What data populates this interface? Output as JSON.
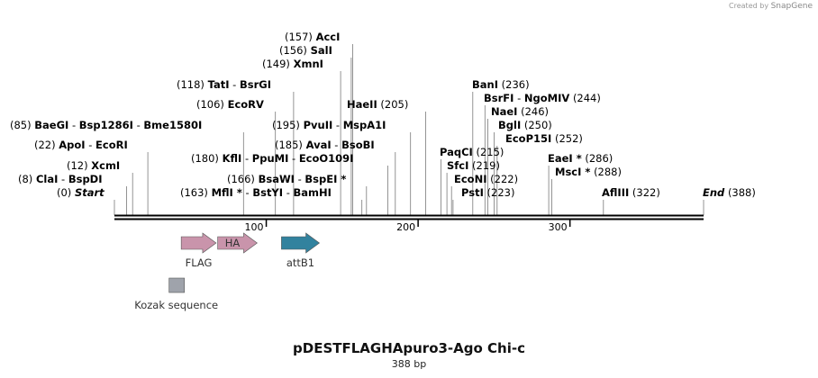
{
  "credit": {
    "prefix": "Created by",
    "brand": "SnapGene"
  },
  "plasmid": {
    "name": "pDESTFLAGHApuro3-Ago Chi-c",
    "size_label": "388 bp",
    "length": 388
  },
  "scale": {
    "ticks": [
      100,
      200,
      300
    ]
  },
  "sites": [
    {
      "id": "start",
      "pos": 0,
      "text": "(0)",
      "names": [
        "Start"
      ],
      "style": "italic"
    },
    {
      "id": "clai",
      "pos": 8,
      "text": "(8)",
      "names": [
        "ClaI",
        "BspDI"
      ]
    },
    {
      "id": "xcmi",
      "pos": 12,
      "text": "(12)",
      "names": [
        "XcmI"
      ]
    },
    {
      "id": "apoi",
      "pos": 22,
      "text": "(22)",
      "names": [
        "ApoI",
        "EcoRI"
      ]
    },
    {
      "id": "baegi",
      "pos": 85,
      "text": "(85)",
      "names": [
        "BaeGI",
        "Bsp1286I",
        "Bme1580I"
      ]
    },
    {
      "id": "ecorv",
      "pos": 106,
      "text": "(106)",
      "names": [
        "EcoRV"
      ]
    },
    {
      "id": "tati",
      "pos": 118,
      "text": "(118)",
      "names": [
        "TatI",
        "BsrGI"
      ]
    },
    {
      "id": "mfli",
      "pos": 163,
      "text": "(163)",
      "names": [
        "MflI *",
        "BstYI",
        "BamHI"
      ]
    },
    {
      "id": "bsawi",
      "pos": 166,
      "text": "(166)",
      "names": [
        "BsaWI",
        "BspEI *"
      ]
    },
    {
      "id": "kfli",
      "pos": 180,
      "text": "(180)",
      "names": [
        "KflI",
        "PpuMI",
        "EcoO109I"
      ]
    },
    {
      "id": "avai",
      "pos": 185,
      "text": "(185)",
      "names": [
        "AvaI",
        "BsoBI"
      ]
    },
    {
      "id": "pvuii",
      "pos": 195,
      "text": "(195)",
      "names": [
        "PvuII",
        "MspA1I"
      ]
    },
    {
      "id": "haeii",
      "pos": 205,
      "text": "(205)",
      "names": [
        "HaeII"
      ]
    },
    {
      "id": "xmni",
      "pos": 149,
      "text": "(149)",
      "names": [
        "XmnI"
      ]
    },
    {
      "id": "sali",
      "pos": 156,
      "text": "(156)",
      "names": [
        "SalI"
      ]
    },
    {
      "id": "acci",
      "pos": 157,
      "text": "(157)",
      "names": [
        "AccI"
      ]
    },
    {
      "id": "psti",
      "pos": 223,
      "text": "(223)",
      "names": [
        "PstI"
      ]
    },
    {
      "id": "econi",
      "pos": 222,
      "text": "(222)",
      "names": [
        "EcoNI"
      ]
    },
    {
      "id": "sfci",
      "pos": 219,
      "text": "(219)",
      "names": [
        "SfcI"
      ]
    },
    {
      "id": "paqci",
      "pos": 215,
      "text": "(215)",
      "names": [
        "PaqCI"
      ]
    },
    {
      "id": "ecop15i",
      "pos": 252,
      "text": "(252)",
      "names": [
        "EcoP15I"
      ]
    },
    {
      "id": "bgli",
      "pos": 250,
      "text": "(250)",
      "names": [
        "BglI"
      ]
    },
    {
      "id": "naei",
      "pos": 246,
      "text": "(246)",
      "names": [
        "NaeI"
      ]
    },
    {
      "id": "bsrfi",
      "pos": 244,
      "text": "(244)",
      "names": [
        "BsrFI",
        "NgoMIV"
      ]
    },
    {
      "id": "bani",
      "pos": 236,
      "text": "(236)",
      "names": [
        "BanI"
      ]
    },
    {
      "id": "msci",
      "pos": 288,
      "text": "(288)",
      "names": [
        "MscI *"
      ]
    },
    {
      "id": "eaei",
      "pos": 286,
      "text": "(286)",
      "names": [
        "EaeI *"
      ]
    },
    {
      "id": "afliii",
      "pos": 322,
      "text": "(322)",
      "names": [
        "AflIII"
      ]
    },
    {
      "id": "end",
      "pos": 388,
      "text": "(388)",
      "names": [
        "End"
      ],
      "style": "italic"
    }
  ],
  "features": [
    {
      "id": "flag",
      "label": "FLAG",
      "color": "#c994ab",
      "start": 44,
      "end": 67,
      "type": "arrow"
    },
    {
      "id": "ha",
      "label": "HA",
      "color": "#c994ab",
      "start": 68,
      "end": 94,
      "type": "arrow",
      "inside": true
    },
    {
      "id": "attb1",
      "label": "attB1",
      "color": "#32829e",
      "start": 110,
      "end": 135,
      "type": "arrow"
    },
    {
      "id": "kozak",
      "label": "Kozak sequence",
      "color": "#9fa3ab",
      "start": 36,
      "end": 46,
      "type": "box"
    }
  ]
}
